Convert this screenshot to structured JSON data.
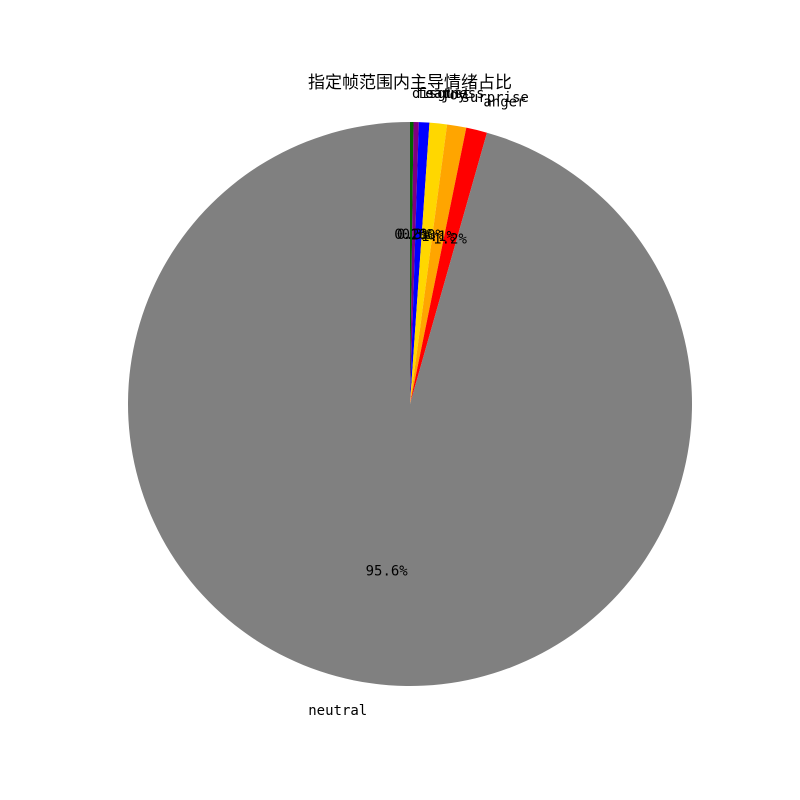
{
  "chart_data": {
    "type": "pie",
    "title": "指定帧范围内主导情绪占比",
    "start_angle_deg": 90,
    "direction": "clockwise",
    "slices": [
      {
        "label": "disgust",
        "value": 0.2,
        "pct_label": "0.2%",
        "color": "#006400"
      },
      {
        "label": "fear",
        "value": 0.3,
        "pct_label": "0.3%",
        "color": "#800080"
      },
      {
        "label": "sadness",
        "value": 0.6,
        "pct_label": "0.6%",
        "color": "#0000FF"
      },
      {
        "label": "joy",
        "value": 1.0,
        "pct_label": "1.0%",
        "color": "#FFD700"
      },
      {
        "label": "surprise",
        "value": 1.1,
        "pct_label": "1.1%",
        "color": "#FFA500"
      },
      {
        "label": "anger",
        "value": 1.2,
        "pct_label": "1.2%",
        "color": "#FF0000"
      },
      {
        "label": "neutral",
        "value": 95.6,
        "pct_label": "95.6%",
        "color": "#808080"
      }
    ],
    "xlabel": "",
    "ylabel": "",
    "legend": "none",
    "grid": false
  }
}
